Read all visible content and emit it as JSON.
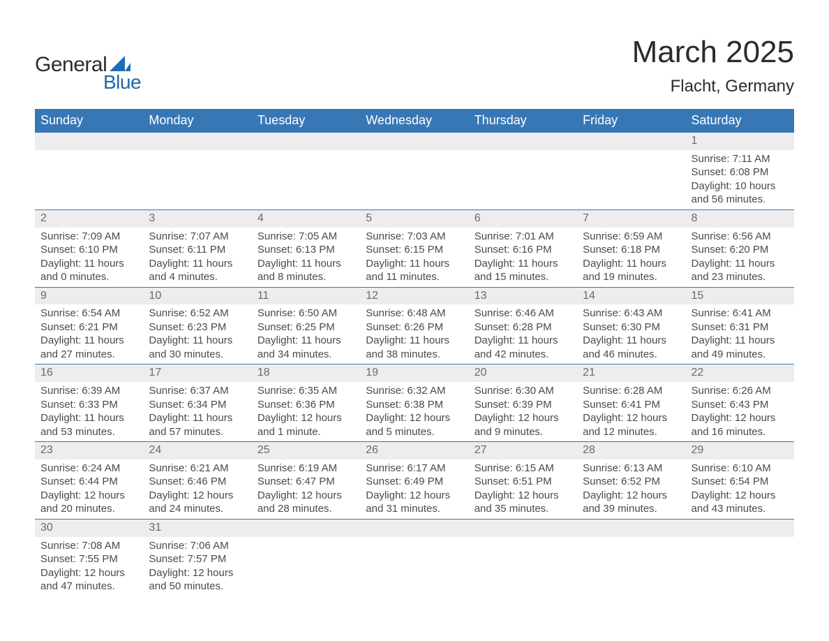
{
  "brand": {
    "word1": "General",
    "word2": "Blue",
    "mark_color": "#1f6db3"
  },
  "title": "March 2025",
  "location": "Flacht, Germany",
  "colors": {
    "header_bg": "#3777b6",
    "header_text": "#ffffff",
    "daynum_bg": "#ededed",
    "daynum_text": "#6a6a6a",
    "body_text": "#4a4a4a",
    "rule": "#3777b6",
    "page_bg": "#ffffff"
  },
  "typography": {
    "title_fontsize": 44,
    "location_fontsize": 24,
    "header_fontsize": 18,
    "cell_fontsize": 15,
    "font_family": "Arial"
  },
  "weekdays": [
    "Sunday",
    "Monday",
    "Tuesday",
    "Wednesday",
    "Thursday",
    "Friday",
    "Saturday"
  ],
  "first_day_column": 6,
  "days": [
    {
      "n": 1,
      "sunrise": "7:11 AM",
      "sunset": "6:08 PM",
      "daylight": "10 hours and 56 minutes."
    },
    {
      "n": 2,
      "sunrise": "7:09 AM",
      "sunset": "6:10 PM",
      "daylight": "11 hours and 0 minutes."
    },
    {
      "n": 3,
      "sunrise": "7:07 AM",
      "sunset": "6:11 PM",
      "daylight": "11 hours and 4 minutes."
    },
    {
      "n": 4,
      "sunrise": "7:05 AM",
      "sunset": "6:13 PM",
      "daylight": "11 hours and 8 minutes."
    },
    {
      "n": 5,
      "sunrise": "7:03 AM",
      "sunset": "6:15 PM",
      "daylight": "11 hours and 11 minutes."
    },
    {
      "n": 6,
      "sunrise": "7:01 AM",
      "sunset": "6:16 PM",
      "daylight": "11 hours and 15 minutes."
    },
    {
      "n": 7,
      "sunrise": "6:59 AM",
      "sunset": "6:18 PM",
      "daylight": "11 hours and 19 minutes."
    },
    {
      "n": 8,
      "sunrise": "6:56 AM",
      "sunset": "6:20 PM",
      "daylight": "11 hours and 23 minutes."
    },
    {
      "n": 9,
      "sunrise": "6:54 AM",
      "sunset": "6:21 PM",
      "daylight": "11 hours and 27 minutes."
    },
    {
      "n": 10,
      "sunrise": "6:52 AM",
      "sunset": "6:23 PM",
      "daylight": "11 hours and 30 minutes."
    },
    {
      "n": 11,
      "sunrise": "6:50 AM",
      "sunset": "6:25 PM",
      "daylight": "11 hours and 34 minutes."
    },
    {
      "n": 12,
      "sunrise": "6:48 AM",
      "sunset": "6:26 PM",
      "daylight": "11 hours and 38 minutes."
    },
    {
      "n": 13,
      "sunrise": "6:46 AM",
      "sunset": "6:28 PM",
      "daylight": "11 hours and 42 minutes."
    },
    {
      "n": 14,
      "sunrise": "6:43 AM",
      "sunset": "6:30 PM",
      "daylight": "11 hours and 46 minutes."
    },
    {
      "n": 15,
      "sunrise": "6:41 AM",
      "sunset": "6:31 PM",
      "daylight": "11 hours and 49 minutes."
    },
    {
      "n": 16,
      "sunrise": "6:39 AM",
      "sunset": "6:33 PM",
      "daylight": "11 hours and 53 minutes."
    },
    {
      "n": 17,
      "sunrise": "6:37 AM",
      "sunset": "6:34 PM",
      "daylight": "11 hours and 57 minutes."
    },
    {
      "n": 18,
      "sunrise": "6:35 AM",
      "sunset": "6:36 PM",
      "daylight": "12 hours and 1 minute."
    },
    {
      "n": 19,
      "sunrise": "6:32 AM",
      "sunset": "6:38 PM",
      "daylight": "12 hours and 5 minutes."
    },
    {
      "n": 20,
      "sunrise": "6:30 AM",
      "sunset": "6:39 PM",
      "daylight": "12 hours and 9 minutes."
    },
    {
      "n": 21,
      "sunrise": "6:28 AM",
      "sunset": "6:41 PM",
      "daylight": "12 hours and 12 minutes."
    },
    {
      "n": 22,
      "sunrise": "6:26 AM",
      "sunset": "6:43 PM",
      "daylight": "12 hours and 16 minutes."
    },
    {
      "n": 23,
      "sunrise": "6:24 AM",
      "sunset": "6:44 PM",
      "daylight": "12 hours and 20 minutes."
    },
    {
      "n": 24,
      "sunrise": "6:21 AM",
      "sunset": "6:46 PM",
      "daylight": "12 hours and 24 minutes."
    },
    {
      "n": 25,
      "sunrise": "6:19 AM",
      "sunset": "6:47 PM",
      "daylight": "12 hours and 28 minutes."
    },
    {
      "n": 26,
      "sunrise": "6:17 AM",
      "sunset": "6:49 PM",
      "daylight": "12 hours and 31 minutes."
    },
    {
      "n": 27,
      "sunrise": "6:15 AM",
      "sunset": "6:51 PM",
      "daylight": "12 hours and 35 minutes."
    },
    {
      "n": 28,
      "sunrise": "6:13 AM",
      "sunset": "6:52 PM",
      "daylight": "12 hours and 39 minutes."
    },
    {
      "n": 29,
      "sunrise": "6:10 AM",
      "sunset": "6:54 PM",
      "daylight": "12 hours and 43 minutes."
    },
    {
      "n": 30,
      "sunrise": "7:08 AM",
      "sunset": "7:55 PM",
      "daylight": "12 hours and 47 minutes."
    },
    {
      "n": 31,
      "sunrise": "7:06 AM",
      "sunset": "7:57 PM",
      "daylight": "12 hours and 50 minutes."
    }
  ],
  "labels": {
    "sunrise": "Sunrise:",
    "sunset": "Sunset:",
    "daylight": "Daylight:"
  }
}
